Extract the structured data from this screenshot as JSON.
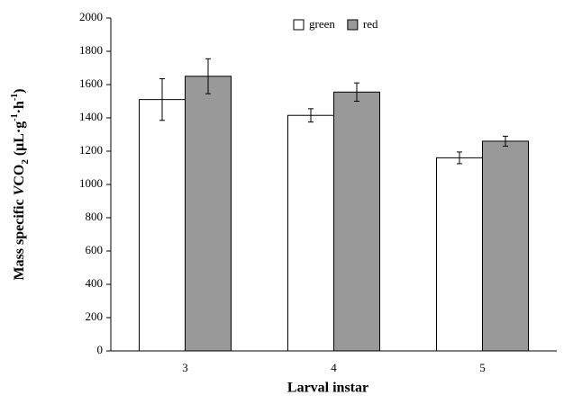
{
  "chart_data": {
    "type": "bar",
    "x_label": "Larval instar",
    "y_label_parts": [
      "Mass specific ",
      "V",
      "CO",
      "2",
      " (μL·g",
      "-1",
      "·h",
      "-1",
      ")"
    ],
    "categories": [
      "3",
      "4",
      "5"
    ],
    "series": [
      {
        "name": "green",
        "color": "#ffffff",
        "values": [
          1510,
          1415,
          1160
        ],
        "errors": [
          125,
          40,
          35
        ]
      },
      {
        "name": "red",
        "color": "#999999",
        "values": [
          1650,
          1555,
          1260
        ],
        "errors": [
          105,
          55,
          30
        ]
      }
    ],
    "ylim": [
      0,
      2000
    ],
    "yticks": [
      0,
      200,
      400,
      600,
      800,
      1000,
      1200,
      1400,
      1600,
      1800,
      2000
    ],
    "legend": "top"
  }
}
